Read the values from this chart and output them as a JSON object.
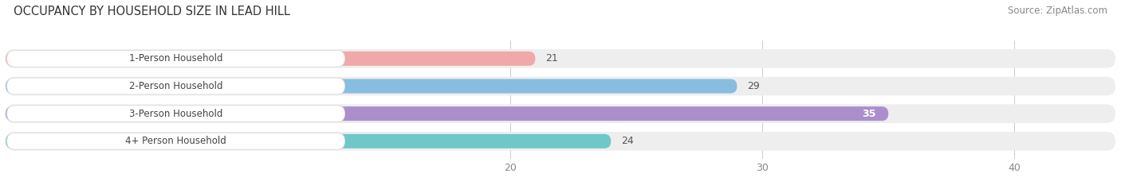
{
  "title": "OCCUPANCY BY HOUSEHOLD SIZE IN LEAD HILL",
  "source": "Source: ZipAtlas.com",
  "categories": [
    "1-Person Household",
    "2-Person Household",
    "3-Person Household",
    "4+ Person Household"
  ],
  "values": [
    21,
    29,
    35,
    24
  ],
  "bar_colors": [
    "#f0a8a8",
    "#89bde0",
    "#aa8fcc",
    "#6ec8c8"
  ],
  "xlim": [
    0,
    44
  ],
  "xticks": [
    20,
    30,
    40
  ],
  "label_colors": [
    "#555555",
    "#555555",
    "#ffffff",
    "#555555"
  ],
  "title_fontsize": 10.5,
  "source_fontsize": 8.5,
  "tick_fontsize": 9,
  "label_fontsize": 9,
  "category_fontsize": 8.5,
  "background_color": "#ffffff",
  "bar_bg_color": "#eeeeee"
}
